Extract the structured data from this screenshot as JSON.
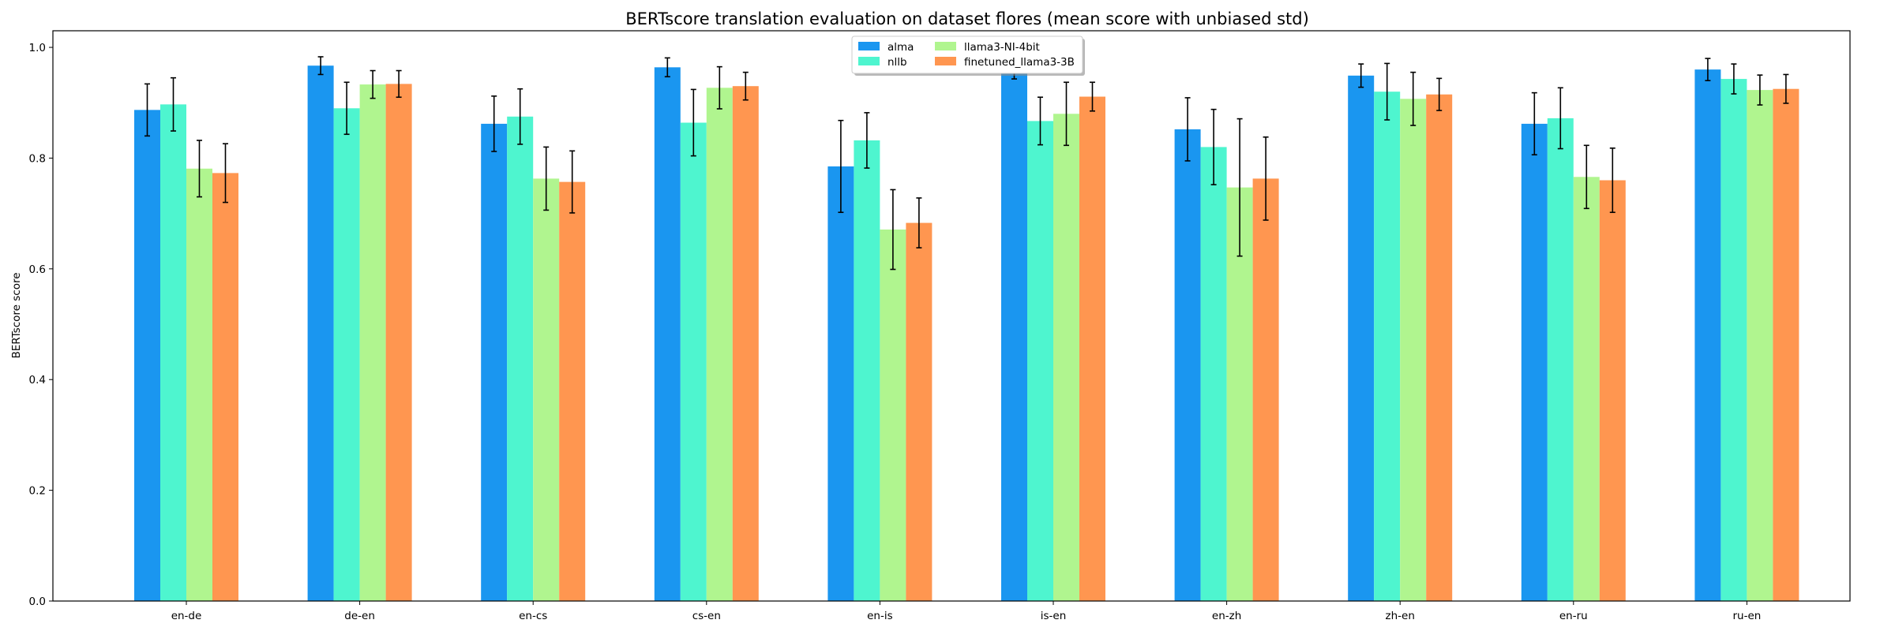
{
  "chart_data": {
    "type": "bar",
    "title": "BERTscore translation evaluation on dataset flores (mean score with unbiased std)",
    "xlabel": "",
    "ylabel": "BERTscore score",
    "ylim": [
      0.0,
      1.03
    ],
    "yticks": [
      "0.0",
      "0.2",
      "0.4",
      "0.6",
      "0.8",
      "1.0"
    ],
    "grid": false,
    "legend_position": "top-center",
    "categories": [
      "en-de",
      "de-en",
      "en-cs",
      "cs-en",
      "en-is",
      "is-en",
      "en-zh",
      "zh-en",
      "en-ru",
      "ru-en"
    ],
    "series": [
      {
        "name": "alma",
        "color": "#1a96f0",
        "values": [
          0.887,
          0.967,
          0.862,
          0.964,
          0.785,
          0.962,
          0.852,
          0.949,
          0.862,
          0.96
        ],
        "errors": [
          0.047,
          0.016,
          0.05,
          0.017,
          0.083,
          0.019,
          0.057,
          0.021,
          0.056,
          0.02
        ]
      },
      {
        "name": "nllb",
        "color": "#4ef5cf",
        "values": [
          0.897,
          0.89,
          0.875,
          0.864,
          0.832,
          0.867,
          0.82,
          0.92,
          0.872,
          0.943
        ],
        "errors": [
          0.048,
          0.047,
          0.05,
          0.06,
          0.05,
          0.043,
          0.068,
          0.051,
          0.055,
          0.027
        ]
      },
      {
        "name": "llama3-NI-4bit",
        "color": "#b0f58f",
        "values": [
          0.781,
          0.933,
          0.763,
          0.927,
          0.671,
          0.88,
          0.747,
          0.907,
          0.766,
          0.923
        ],
        "errors": [
          0.051,
          0.025,
          0.057,
          0.038,
          0.072,
          0.057,
          0.124,
          0.048,
          0.057,
          0.027
        ]
      },
      {
        "name": "finetuned_llama3-3B",
        "color": "#ff9650",
        "values": [
          0.773,
          0.934,
          0.757,
          0.93,
          0.683,
          0.911,
          0.763,
          0.915,
          0.76,
          0.925
        ],
        "errors": [
          0.053,
          0.024,
          0.056,
          0.025,
          0.045,
          0.026,
          0.075,
          0.029,
          0.058,
          0.026
        ]
      }
    ]
  }
}
